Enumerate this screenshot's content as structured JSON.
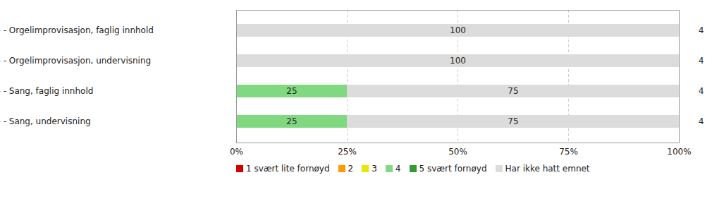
{
  "chart_data": {
    "type": "bar",
    "orientation": "horizontal",
    "stacked": true,
    "data_labels": true,
    "grid": true,
    "legend": "bottom",
    "categories": [
      "- - Orgelimprovisasjon, faglig innhold",
      "- - Orgelimprovisasjon, undervisning",
      "- - Sang, faglig innhold",
      "- - Sang, undervisning"
    ],
    "counts": [
      4,
      4,
      4,
      4
    ],
    "series": [
      {
        "name": "1 svært lite fornøyd",
        "color": "#d40000",
        "values": [
          0,
          0,
          0,
          0
        ]
      },
      {
        "name": "2",
        "color": "#ff9900",
        "values": [
          0,
          0,
          0,
          0
        ]
      },
      {
        "name": "3",
        "color": "#e6e600",
        "values": [
          0,
          0,
          0,
          0
        ]
      },
      {
        "name": "4",
        "color": "#80d880",
        "values": [
          0,
          0,
          25,
          25
        ]
      },
      {
        "name": "5 svært fornøyd",
        "color": "#339933",
        "values": [
          0,
          0,
          0,
          0
        ]
      },
      {
        "name": "Har ikke hatt emnet",
        "color": "#dcdcdc",
        "values": [
          100,
          100,
          75,
          75
        ]
      }
    ],
    "xlim": [
      0,
      100
    ],
    "xticks": [
      {
        "value": 0,
        "label": "0%"
      },
      {
        "value": 25,
        "label": "25%"
      },
      {
        "value": 50,
        "label": "50%"
      },
      {
        "value": 75,
        "label": "75%"
      },
      {
        "value": 100,
        "label": "100%"
      }
    ]
  }
}
